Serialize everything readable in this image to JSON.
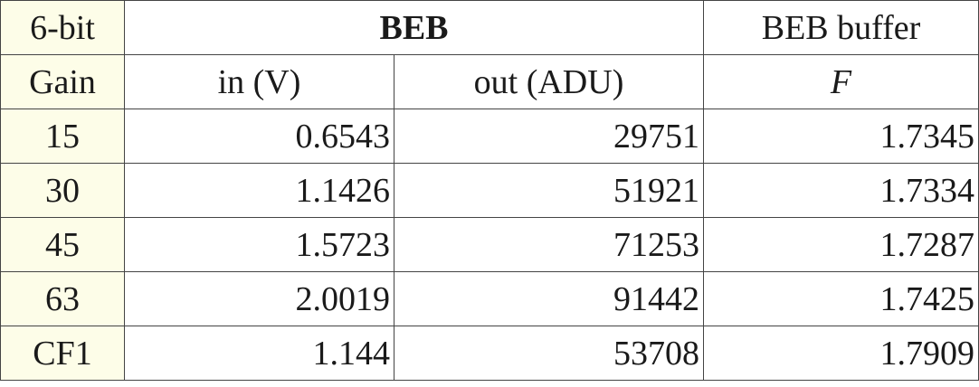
{
  "header": {
    "row1": {
      "col0": "6-bit",
      "beb": "BEB",
      "buffer": "BEB buffer"
    },
    "row2": {
      "col0": "Gain",
      "in": "in (V)",
      "out": "out (ADU)",
      "f": "F"
    }
  },
  "rows": [
    {
      "gain": "15",
      "in": "0.6543",
      "out": "29751",
      "f": "1.7345"
    },
    {
      "gain": "30",
      "in": "1.1426",
      "out": "51921",
      "f": "1.7334"
    },
    {
      "gain": "45",
      "in": "1.5723",
      "out": "71253",
      "f": "1.7287"
    },
    {
      "gain": "63",
      "in": "2.0019",
      "out": "91442",
      "f": "1.7425"
    },
    {
      "gain": "CF1",
      "in": "1.144",
      "out": "53708",
      "f": "1.7909"
    }
  ]
}
